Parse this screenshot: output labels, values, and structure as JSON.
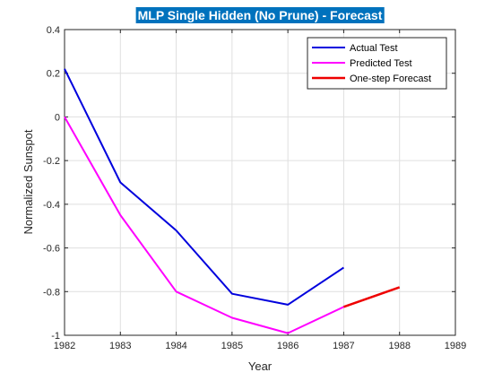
{
  "chart_data": {
    "type": "line",
    "title": "MLP Single Hidden (No Prune) - Forecast",
    "xlabel": "Year",
    "ylabel": "Normalized Sunspot",
    "xlim": [
      1982,
      1989
    ],
    "ylim": [
      -1,
      0.4
    ],
    "xticks": [
      1982,
      1983,
      1984,
      1985,
      1986,
      1987,
      1988,
      1989
    ],
    "yticks": [
      -1,
      -0.8,
      -0.6,
      -0.4,
      -0.2,
      0,
      0.2,
      0.4
    ],
    "xtick_labels": [
      "1982",
      "1983",
      "1984",
      "1985",
      "1986",
      "1987",
      "1988",
      "1989"
    ],
    "ytick_labels": [
      "-1",
      "-0.8",
      "-0.6",
      "-0.4",
      "-0.2",
      "0",
      "0.2",
      "0.4"
    ],
    "grid": true,
    "legend_position": "top-right",
    "title_background": "#0072bd",
    "series": [
      {
        "name": "Actual Test",
        "color": "#0000dd",
        "x": [
          1982,
          1983,
          1984,
          1985,
          1986,
          1987
        ],
        "y": [
          0.22,
          -0.3,
          -0.52,
          -0.81,
          -0.86,
          -0.69
        ]
      },
      {
        "name": "Predicted Test",
        "color": "#ff00ff",
        "x": [
          1982,
          1983,
          1984,
          1985,
          1986,
          1987
        ],
        "y": [
          0.0,
          -0.45,
          -0.8,
          -0.92,
          -0.99,
          -0.87
        ]
      },
      {
        "name": "One-step Forecast",
        "color": "#ee0000",
        "x": [
          1987,
          1988
        ],
        "y": [
          -0.87,
          -0.78
        ]
      }
    ]
  }
}
